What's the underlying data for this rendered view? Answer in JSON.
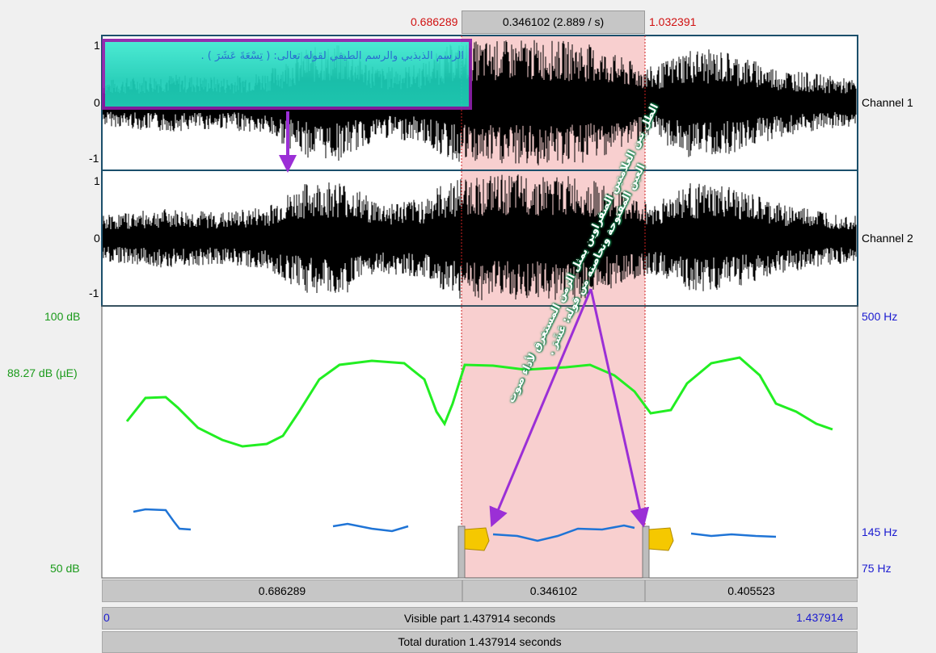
{
  "selection": {
    "start": "0.686289",
    "duration": "0.346102 (2.889 / s)",
    "end": "1.032391"
  },
  "channels": [
    {
      "name": "Channel 1",
      "max": "1",
      "zero": "0",
      "min": "-1"
    },
    {
      "name": "Channel 2",
      "max": "1",
      "zero": "0",
      "min": "-1"
    }
  ],
  "intensity": {
    "top": "100 dB",
    "cursor": "88.27 dB (µE)",
    "bottom": "50 dB"
  },
  "pitch": {
    "top": "500 Hz",
    "mid": "145 Hz",
    "bottom": "75 Hz"
  },
  "segments": [
    "0.686289",
    "0.346102",
    "0.405523"
  ],
  "visible": {
    "start": "0",
    "label": "Visible part 1.437914 seconds",
    "end": "1.437914"
  },
  "total": {
    "label": "Total duration 1.437914 seconds"
  },
  "annotations": {
    "top_note": "الرسم الذبذبي والرسم الطيفي لقوله تعالى: ( تِسْعَةَ عَشَرَ ) .",
    "rotated_note_line1": "الطل بين العلامتين الصفراوين يمثل الزمن المستغرق لأداء صوت",
    "rotated_note_line2": "العين المفتوحة ونحاصته من قوله: عَشَرَ ."
  },
  "colors": {
    "intensity_curve": "#22ee22",
    "pitch_curve": "#1f74d6",
    "selection_fill": "#f8cfcf",
    "arrow": "#9b2fd6",
    "note_border": "#8b1fa8"
  },
  "icons": {
    "flag": "yellow-flag-icon",
    "arrow": "down-arrow-icon"
  }
}
